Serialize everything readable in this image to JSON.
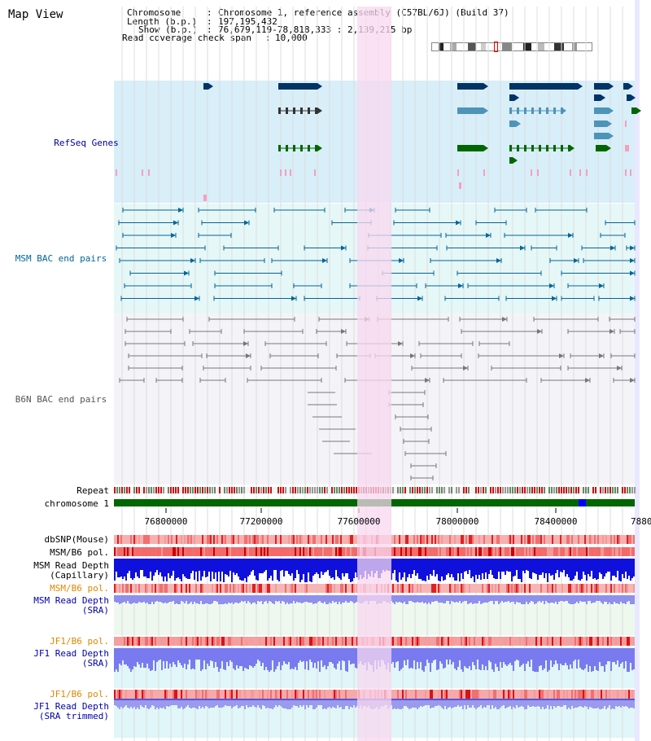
{
  "view": {
    "title": "Map View"
  },
  "info": {
    "chromosome_label": "Chromosome",
    "chromosome_value": "Chromosome 1, reference assembly (C57BL/6J) (Build 37)",
    "length_label": "Length (b.p.)",
    "length_value": "197,195,432",
    "show_label": "Show (b.p.)",
    "show_value": "76,679,119-78,818,333 : 2,139,215 bp",
    "coverage_label": "Read coverage check span",
    "coverage_value": "10,000"
  },
  "tracks": {
    "refseq": {
      "label": "RefSeq Genes",
      "color": "#000099",
      "bg": "#d8eef9"
    },
    "msm_bac": {
      "label": "MSM BAC end pairs",
      "color": "#006699",
      "bg": "#e6f7f7"
    },
    "b6n_bac": {
      "label": "B6N BAC end pairs",
      "color": "#555555",
      "bg": "#f4f4f8"
    },
    "repeat": {
      "label": "Repeat"
    },
    "chromosome": {
      "label": "chromosome 1",
      "color": "#006600"
    },
    "dbsnp": {
      "label": "dbSNP(Mouse)"
    },
    "msm_b6_pol": {
      "label": "MSM/B6 pol."
    },
    "msm_depth_cap": {
      "label1": "MSM Read Depth",
      "label2": "(Capillary)"
    },
    "msm_b6_pol2": {
      "label": "MSM/B6 pol.",
      "color": "#dd8800"
    },
    "msm_depth_sra": {
      "label1": "MSM Read Depth",
      "label2": "(SRA)",
      "color": "#0000aa"
    },
    "jf1_b6_pol": {
      "label": "JF1/B6 pol.",
      "color": "#dd8800"
    },
    "jf1_depth_sra": {
      "label1": "JF1 Read Depth",
      "label2": "(SRA)",
      "color": "#0000aa"
    },
    "jf1_b6_pol2": {
      "label": "JF1/B6 pol.",
      "color": "#dd8800"
    },
    "jf1_depth_trim": {
      "label1": "JF1 Read Depth",
      "label2": "(SRA trimmed)",
      "color": "#0000aa"
    }
  },
  "axis": {
    "ticks": [
      "76800000",
      "77200000",
      "77600000",
      "78000000",
      "78400000",
      "7880"
    ]
  },
  "highlight": {
    "color": "#f8d8f0"
  }
}
